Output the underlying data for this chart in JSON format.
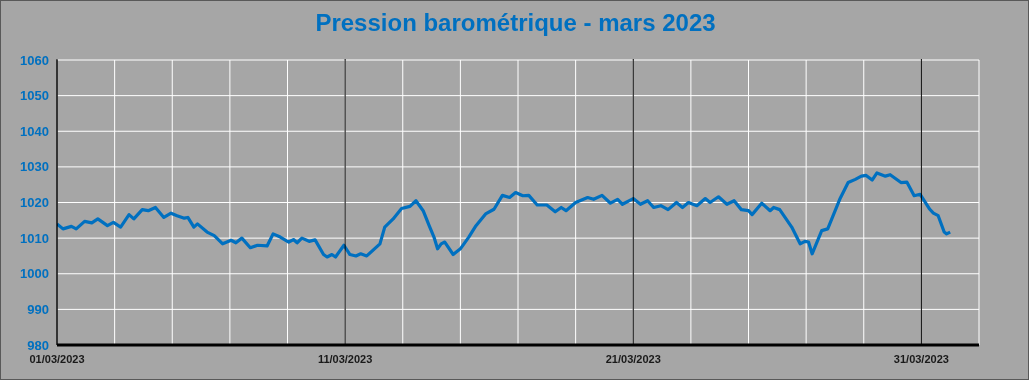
{
  "chart_data": {
    "type": "line",
    "title": "Pression barométrique - mars 2023",
    "x": [
      "2023-03-01T00:00",
      "2023-03-01T05:00",
      "2023-03-01T12:00",
      "2023-03-01T16:00",
      "2023-03-01T23:00",
      "2023-03-02T05:00",
      "2023-03-02T10:00",
      "2023-03-02T18:00",
      "2023-03-02T23:00",
      "2023-03-03T05:00",
      "2023-03-03T12:00",
      "2023-03-03T16:00",
      "2023-03-03T23:00",
      "2023-03-04T04:00",
      "2023-03-04T10:00",
      "2023-03-04T17:00",
      "2023-03-04T23:00",
      "2023-03-05T04:00",
      "2023-03-05T10:00",
      "2023-03-05T13:00",
      "2023-03-05T18:00",
      "2023-03-05T21:00",
      "2023-03-06T05:00",
      "2023-03-06T11:00",
      "2023-03-06T18:00",
      "2023-03-07T01:00",
      "2023-03-07T05:00",
      "2023-03-07T10:00",
      "2023-03-07T17:00",
      "2023-03-07T23:00",
      "2023-03-08T07:00",
      "2023-03-08T12:00",
      "2023-03-08T18:00",
      "2023-03-09T01:00",
      "2023-03-09T05:00",
      "2023-03-09T08:00",
      "2023-03-09T12:00",
      "2023-03-09T18:00",
      "2023-03-09T23:00",
      "2023-03-10T06:00",
      "2023-03-10T09:00",
      "2023-03-10T13:00",
      "2023-03-10T16:00",
      "2023-03-10T23:00",
      "2023-03-11T04:00",
      "2023-03-11T09:00",
      "2023-03-11T13:00",
      "2023-03-11T18:00",
      "2023-03-12T05:00",
      "2023-03-12T09:00",
      "2023-03-12T16:00",
      "2023-03-12T23:00",
      "2023-03-13T06:00",
      "2023-03-13T11:00",
      "2023-03-13T17:00",
      "2023-03-13T22:00",
      "2023-03-14T02:00",
      "2023-03-14T05:00",
      "2023-03-14T08:00",
      "2023-03-14T11:00",
      "2023-03-14T18:00",
      "2023-03-15T00:00",
      "2023-03-15T07:00",
      "2023-03-15T13:00",
      "2023-03-15T21:00",
      "2023-03-16T04:00",
      "2023-03-16T11:00",
      "2023-03-16T17:00",
      "2023-03-16T22:00",
      "2023-03-17T04:00",
      "2023-03-17T09:00",
      "2023-03-17T16:00",
      "2023-03-18T00:00",
      "2023-03-18T07:00",
      "2023-03-18T12:00",
      "2023-03-18T16:00",
      "2023-03-19T00:00",
      "2023-03-19T10:00",
      "2023-03-19T15:00",
      "2023-03-19T22:00",
      "2023-03-20T05:00",
      "2023-03-20T11:00",
      "2023-03-20T15:00",
      "2023-03-21T00:00",
      "2023-03-21T06:00",
      "2023-03-21T12:00",
      "2023-03-21T17:00",
      "2023-03-21T23:00",
      "2023-03-22T05:00",
      "2023-03-22T12:00",
      "2023-03-22T17:00",
      "2023-03-22T22:00",
      "2023-03-23T05:00",
      "2023-03-23T12:00",
      "2023-03-23T16:00",
      "2023-03-23T23:00",
      "2023-03-24T06:00",
      "2023-03-24T12:00",
      "2023-03-24T18:00",
      "2023-03-25T00:00",
      "2023-03-25T03:00",
      "2023-03-25T11:00",
      "2023-03-25T18:00",
      "2023-03-25T21:00",
      "2023-03-26T02:00",
      "2023-03-26T12:00",
      "2023-03-26T19:00",
      "2023-03-26T23:00",
      "2023-03-27T02:00",
      "2023-03-27T05:00",
      "2023-03-27T13:00",
      "2023-03-27T18:00",
      "2023-03-28T04:00",
      "2023-03-28T11:00",
      "2023-03-28T17:00",
      "2023-03-28T22:00",
      "2023-03-29T02:00",
      "2023-03-29T07:00",
      "2023-03-29T11:00",
      "2023-03-29T18:00",
      "2023-03-29T22:00",
      "2023-03-30T07:00",
      "2023-03-30T12:00",
      "2023-03-30T18:00",
      "2023-03-30T23:00",
      "2023-03-31T07:00",
      "2023-03-31T10:00",
      "2023-03-31T14:00",
      "2023-03-31T19:00",
      "2023-03-31T21:00",
      "2023-04-01T00:00"
    ],
    "series": [
      {
        "color": "#0070c0",
        "values": [
          1014,
          1012.6,
          1013.3,
          1012.6,
          1014.7,
          1014.3,
          1015.4,
          1013.5,
          1014.4,
          1013.1,
          1016.6,
          1015.4,
          1018,
          1017.7,
          1018.6,
          1015.8,
          1017,
          1016.3,
          1015.6,
          1015.8,
          1013.1,
          1014,
          1011.7,
          1010.7,
          1008.4,
          1009.4,
          1008.7,
          1010,
          1007.3,
          1008,
          1007.8,
          1011.2,
          1010.3,
          1008.9,
          1009.6,
          1008.7,
          1010,
          1009.1,
          1009.5,
          1005.4,
          1004.7,
          1005.4,
          1004.7,
          1008,
          1005.4,
          1005,
          1005.6,
          1005,
          1008.4,
          1013.1,
          1015.4,
          1018.3,
          1018.9,
          1020.5,
          1017.7,
          1013.5,
          1010.3,
          1007,
          1008.4,
          1008.9,
          1005.4,
          1007,
          1010.3,
          1013.5,
          1016.8,
          1018.1,
          1022,
          1021.4,
          1022.8,
          1021.9,
          1022,
          1019.3,
          1019.3,
          1017.4,
          1018.6,
          1017.7,
          1020,
          1021.4,
          1020.9,
          1022,
          1019.8,
          1020.9,
          1019.5,
          1021.1,
          1019.5,
          1020.5,
          1018.6,
          1019.1,
          1018,
          1020,
          1018.6,
          1020,
          1019.1,
          1021.1,
          1020,
          1021.6,
          1019.5,
          1020.5,
          1018,
          1017.7,
          1016.6,
          1019.8,
          1017.7,
          1018.6,
          1018,
          1013.1,
          1008.4,
          1009.1,
          1008.9,
          1005.6,
          1012.1,
          1012.6,
          1020.9,
          1025.6,
          1026.5,
          1027.4,
          1027.6,
          1026.3,
          1028.3,
          1027.4,
          1027.8,
          1025.6,
          1025.7,
          1021.9,
          1022.3,
          1018.1,
          1017,
          1016.3,
          1011.7,
          1011.2,
          1011.7
        ]
      }
    ],
    "xlim": [
      "2023-03-01",
      "2023-04-02"
    ],
    "xticks": [
      {
        "value": "2023-03-01",
        "label": "01/03/2023"
      },
      {
        "value": "2023-03-03",
        "label": null
      },
      {
        "value": "2023-03-05",
        "label": null
      },
      {
        "value": "2023-03-07",
        "label": null
      },
      {
        "value": "2023-03-09",
        "label": null
      },
      {
        "value": "2023-03-11",
        "label": "11/03/2023"
      },
      {
        "value": "2023-03-13",
        "label": null
      },
      {
        "value": "2023-03-15",
        "label": null
      },
      {
        "value": "2023-03-17",
        "label": null
      },
      {
        "value": "2023-03-19",
        "label": null
      },
      {
        "value": "2023-03-21",
        "label": "21/03/2023"
      },
      {
        "value": "2023-03-23",
        "label": null
      },
      {
        "value": "2023-03-25",
        "label": null
      },
      {
        "value": "2023-03-27",
        "label": null
      },
      {
        "value": "2023-03-29",
        "label": null
      },
      {
        "value": "2023-03-31",
        "label": "31/03/2023"
      }
    ],
    "ylim": [
      980,
      1060
    ],
    "yticks": [
      980,
      990,
      1000,
      1010,
      1020,
      1030,
      1040,
      1050,
      1060
    ],
    "grid": true,
    "legend": false,
    "marker": "none",
    "line_style": "solid"
  }
}
